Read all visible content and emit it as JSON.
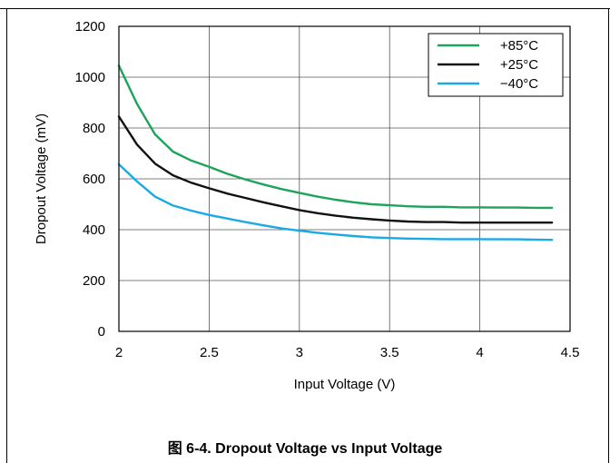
{
  "figure": {
    "caption": "图 6-4. Dropout Voltage vs Input Voltage"
  },
  "chart_data": {
    "type": "line",
    "title": "",
    "xlabel": "Input Voltage (V)",
    "ylabel": "Dropout Voltage (mV)",
    "xlim": [
      2,
      4.5
    ],
    "ylim": [
      0,
      1200
    ],
    "xticks": [
      2,
      2.5,
      3,
      3.5,
      4,
      4.5
    ],
    "xtick_labels": [
      "2",
      "2.5",
      "3",
      "3.5",
      "4",
      "4.5"
    ],
    "yticks": [
      0,
      200,
      400,
      600,
      800,
      1000,
      1200
    ],
    "ytick_labels": [
      "0",
      "200",
      "400",
      "600",
      "800",
      "1000",
      "1200"
    ],
    "grid": true,
    "legend_position": "top-right",
    "series": [
      {
        "name": "+85°C",
        "color": "#1ea35a",
        "x": [
          2.0,
          2.1,
          2.2,
          2.3,
          2.4,
          2.5,
          2.6,
          2.7,
          2.8,
          2.9,
          3.0,
          3.1,
          3.2,
          3.3,
          3.4,
          3.5,
          3.6,
          3.7,
          3.8,
          3.9,
          4.0,
          4.1,
          4.2,
          4.3,
          4.4
        ],
        "y": [
          1045,
          895,
          775,
          707,
          672,
          647,
          620,
          598,
          578,
          560,
          545,
          530,
          518,
          508,
          500,
          496,
          492,
          490,
          490,
          488,
          488,
          487,
          487,
          486,
          486
        ]
      },
      {
        "name": "+25°C",
        "color": "#111111",
        "x": [
          2.0,
          2.1,
          2.2,
          2.3,
          2.4,
          2.5,
          2.6,
          2.7,
          2.8,
          2.9,
          3.0,
          3.1,
          3.2,
          3.3,
          3.4,
          3.5,
          3.6,
          3.7,
          3.8,
          3.9,
          4.0,
          4.1,
          4.2,
          4.3,
          4.4
        ],
        "y": [
          845,
          735,
          660,
          614,
          585,
          563,
          542,
          525,
          508,
          492,
          477,
          465,
          455,
          447,
          441,
          436,
          432,
          430,
          430,
          428,
          428,
          428,
          428,
          428,
          428
        ]
      },
      {
        "name": "−40°C",
        "color": "#19a9e6",
        "x": [
          2.0,
          2.1,
          2.2,
          2.3,
          2.4,
          2.5,
          2.6,
          2.7,
          2.8,
          2.9,
          3.0,
          3.1,
          3.2,
          3.3,
          3.4,
          3.5,
          3.6,
          3.7,
          3.8,
          3.9,
          4.0,
          4.1,
          4.2,
          4.3,
          4.4
        ],
        "y": [
          657,
          590,
          530,
          495,
          475,
          458,
          444,
          430,
          417,
          405,
          396,
          388,
          381,
          375,
          370,
          367,
          365,
          364,
          363,
          363,
          363,
          362,
          362,
          361,
          360
        ]
      }
    ]
  }
}
